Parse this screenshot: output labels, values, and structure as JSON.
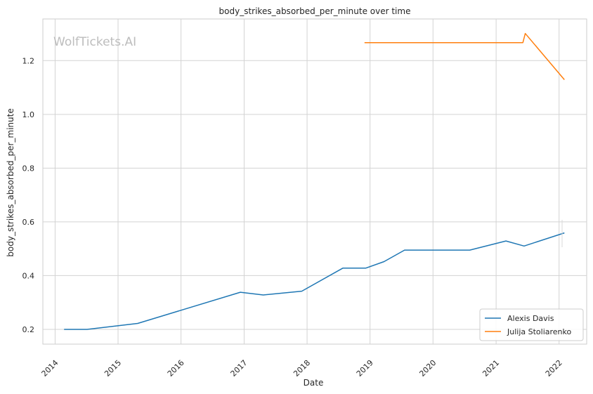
{
  "chart_data": {
    "type": "line",
    "title": "body_strikes_absorbed_per_minute over time",
    "xlabel": "Date",
    "ylabel": "body_strikes_absorbed_per_minute",
    "watermark": "WolfTickets.AI",
    "x_ticks": [
      "2014",
      "2015",
      "2016",
      "2017",
      "2018",
      "2019",
      "2020",
      "2021",
      "2022"
    ],
    "y_ticks": [
      "0.2",
      "0.4",
      "0.6",
      "0.8",
      "1.0",
      "1.2"
    ],
    "xlim": [
      "2013-10-22",
      "2022-06-10"
    ],
    "ylim": [
      0.145,
      1.355
    ],
    "grid": true,
    "legend_position": "lower-right",
    "series": [
      {
        "name": "Alexis Davis",
        "color": "#1f77b4",
        "points": [
          [
            "2014-02-22",
            0.2
          ],
          [
            "2014-07-05",
            0.2
          ],
          [
            "2015-04-25",
            0.222
          ],
          [
            "2016-12-10",
            0.338
          ],
          [
            "2017-04-22",
            0.328
          ],
          [
            "2017-12-01",
            0.342
          ],
          [
            "2018-07-28",
            0.428
          ],
          [
            "2018-12-08",
            0.428
          ],
          [
            "2019-03-23",
            0.452
          ],
          [
            "2019-07-20",
            0.495
          ],
          [
            "2020-08-01",
            0.495
          ],
          [
            "2021-02-27",
            0.529
          ],
          [
            "2021-06-12",
            0.51
          ],
          [
            "2022-02-01",
            0.559
          ]
        ]
      },
      {
        "name": "Julija Stoliarenko",
        "color": "#ff7f0e",
        "points": [
          [
            "2018-11-30",
            1.267
          ],
          [
            "2021-06-05",
            1.267
          ],
          [
            "2021-06-19",
            1.301
          ],
          [
            "2022-02-01",
            1.129
          ]
        ]
      }
    ]
  }
}
